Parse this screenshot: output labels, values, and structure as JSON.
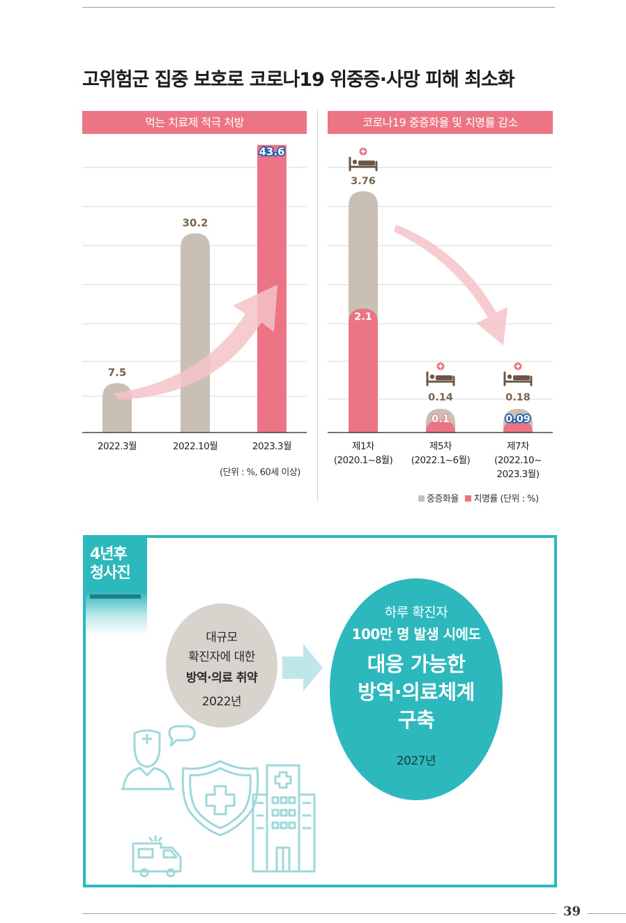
{
  "title": "고위험군 집중 보호로 코로나19 위중증·사망 피해 최소화",
  "page_number": "39",
  "left_chart": {
    "banner": "먹는 치료제 적극 처방",
    "unit_note": "(단위 : %, 60세 이상)",
    "categories": [
      "2022.3월",
      "2022.10월",
      "2023.3월"
    ],
    "value_labels": [
      "7.5",
      "30.2",
      "43.6"
    ]
  },
  "right_chart": {
    "banner": "코로나19 중증화율 및 치명률 감소",
    "categories": [
      "제1차",
      "제5차",
      "제7차"
    ],
    "periods": [
      "(2020.1~8월)",
      "(2022.1~6월)",
      "(2022.10~",
      "2023.3월)"
    ],
    "severe_labels": [
      "3.76",
      "0.14",
      "0.18"
    ],
    "fatal_labels": [
      "2.1",
      "0.1",
      "0.09"
    ],
    "legend_severe": "중증화율",
    "legend_fatal": "치명률 (단위 : %)"
  },
  "colors": {
    "pink": "#ec7585",
    "beige": "#c9bfb4",
    "teal": "#2db8bd",
    "value_brown": "#7a6553",
    "value_blue": "#1a5fa8"
  },
  "chart_data": [
    {
      "type": "bar",
      "title": "먹는 치료제 적극 처방",
      "categories": [
        "2022.3월",
        "2022.10월",
        "2023.3월"
      ],
      "values": [
        7.5,
        30.2,
        43.6
      ],
      "unit": "%, 60세 이상",
      "ylim": [
        0,
        46
      ]
    },
    {
      "type": "bar",
      "title": "코로나19 중증화율 및 치명률 감소",
      "categories": [
        "제1차 (2020.1~8월)",
        "제5차 (2022.1~6월)",
        "제7차 (2022.10~2023.3월)"
      ],
      "series": [
        {
          "name": "중증화율",
          "values": [
            3.76,
            0.14,
            0.18
          ]
        },
        {
          "name": "치명률",
          "values": [
            2.1,
            0.1,
            0.09
          ]
        }
      ],
      "unit": "%",
      "ylim": [
        0,
        4.5
      ]
    }
  ],
  "future": {
    "tag_line1": "4년후",
    "tag_line2": "청사진",
    "before_line1": "대규모",
    "before_line2": "확진자에 대한",
    "before_line3": "방역·의료 취약",
    "before_year": "2022년",
    "after_line1": "하루 확진자",
    "after_line2": "100만 명 발생 시에도",
    "after_line3": "대응 가능한",
    "after_line4": "방역·의료체계",
    "after_line5": "구축",
    "after_year": "2027년"
  }
}
